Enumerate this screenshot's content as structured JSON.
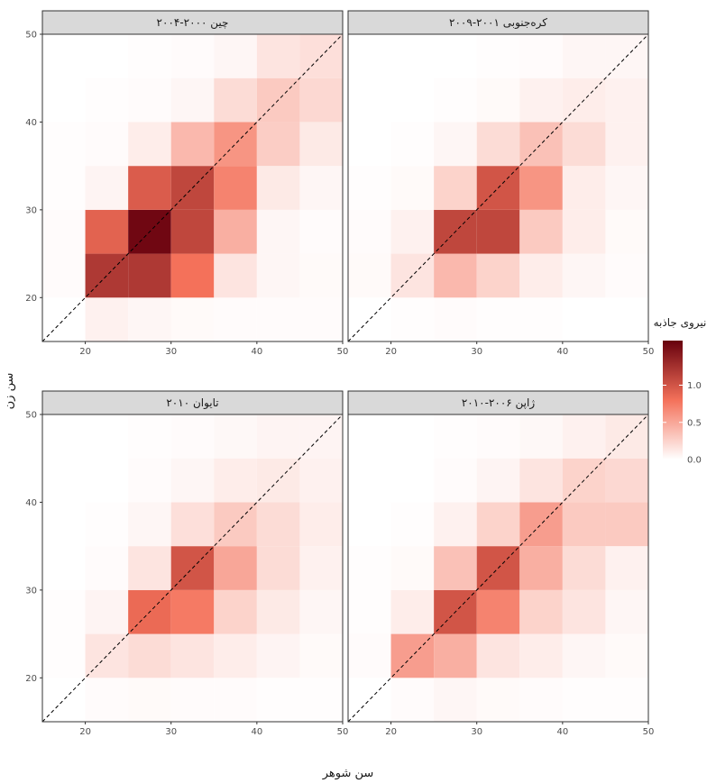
{
  "chart_data": {
    "type": "heatmap",
    "xlabel": "سن شوهر",
    "ylabel": "سن زن",
    "xlim": [
      15,
      50
    ],
    "ylim": [
      15,
      50
    ],
    "x_ticks": [
      20,
      30,
      40,
      50
    ],
    "y_ticks": [
      20,
      30,
      40,
      50
    ],
    "bin_width": 5,
    "bin_starts": [
      15,
      20,
      25,
      30,
      35,
      40,
      45
    ],
    "diagonal_reference_line": true,
    "grid": false,
    "legend": {
      "title": "نیروی جاذبه",
      "placement": "right",
      "ticks": [
        0.0,
        0.5,
        1.0
      ],
      "tick_labels": [
        "0.0",
        "0.5",
        "1.0"
      ],
      "range": [
        0,
        1.6
      ],
      "color_low": "#ffffff",
      "color_high": "#67000d"
    },
    "panels": [
      {
        "title": "چین ۲۰۰۰-۲۰۰۴",
        "position": "top-left",
        "values": [
          [
            0.0,
            0.08,
            0.05,
            0.03,
            0.02,
            0.02,
            0.02
          ],
          [
            0.02,
            1.2,
            1.2,
            0.8,
            0.15,
            0.05,
            0.03
          ],
          [
            0.02,
            0.9,
            1.55,
            1.1,
            0.45,
            0.05,
            0.02
          ],
          [
            0.01,
            0.06,
            0.95,
            1.1,
            0.7,
            0.12,
            0.05
          ],
          [
            0.01,
            0.02,
            0.1,
            0.4,
            0.6,
            0.28,
            0.12
          ],
          [
            0.0,
            0.01,
            0.02,
            0.05,
            0.2,
            0.3,
            0.22
          ],
          [
            0.0,
            0.0,
            0.01,
            0.02,
            0.05,
            0.15,
            0.18
          ]
        ]
      },
      {
        "title": "کره‌جنوبی ۲۰۰۱-۲۰۰۹",
        "position": "top-right",
        "values": [
          [
            0.0,
            0.01,
            0.02,
            0.01,
            0.01,
            0.0,
            0.0
          ],
          [
            0.03,
            0.15,
            0.4,
            0.25,
            0.1,
            0.05,
            0.02
          ],
          [
            0.02,
            0.08,
            1.1,
            1.1,
            0.3,
            0.1,
            0.03
          ],
          [
            0.01,
            0.03,
            0.25,
            1.0,
            0.6,
            0.1,
            0.05
          ],
          [
            0.0,
            0.01,
            0.05,
            0.2,
            0.35,
            0.2,
            0.08
          ],
          [
            0.0,
            0.0,
            0.01,
            0.03,
            0.08,
            0.1,
            0.08
          ],
          [
            0.0,
            0.0,
            0.0,
            0.01,
            0.02,
            0.05,
            0.05
          ]
        ]
      },
      {
        "title": "تایوان ۲۰۱۰",
        "position": "bottom-left",
        "values": [
          [
            0.0,
            0.02,
            0.03,
            0.02,
            0.02,
            0.01,
            0.01
          ],
          [
            0.01,
            0.15,
            0.2,
            0.15,
            0.1,
            0.06,
            0.03
          ],
          [
            0.01,
            0.06,
            0.85,
            0.75,
            0.25,
            0.12,
            0.05
          ],
          [
            0.0,
            0.02,
            0.15,
            1.0,
            0.5,
            0.2,
            0.08
          ],
          [
            0.0,
            0.01,
            0.05,
            0.18,
            0.3,
            0.2,
            0.1
          ],
          [
            0.0,
            0.0,
            0.02,
            0.05,
            0.1,
            0.12,
            0.08
          ],
          [
            0.0,
            0.0,
            0.01,
            0.02,
            0.04,
            0.06,
            0.06
          ]
        ]
      },
      {
        "title": "ژاپن ۲۰۰۶-۲۰۱۰",
        "position": "bottom-right",
        "values": [
          [
            0.0,
            0.02,
            0.05,
            0.03,
            0.02,
            0.01,
            0.01
          ],
          [
            0.02,
            0.55,
            0.45,
            0.15,
            0.1,
            0.05,
            0.03
          ],
          [
            0.01,
            0.1,
            1.0,
            0.7,
            0.25,
            0.15,
            0.05
          ],
          [
            0.01,
            0.03,
            0.35,
            1.0,
            0.45,
            0.2,
            0.08
          ],
          [
            0.0,
            0.01,
            0.08,
            0.25,
            0.55,
            0.3,
            0.3
          ],
          [
            0.0,
            0.0,
            0.02,
            0.06,
            0.15,
            0.25,
            0.22
          ],
          [
            0.0,
            0.0,
            0.01,
            0.02,
            0.04,
            0.08,
            0.12
          ]
        ]
      }
    ]
  }
}
